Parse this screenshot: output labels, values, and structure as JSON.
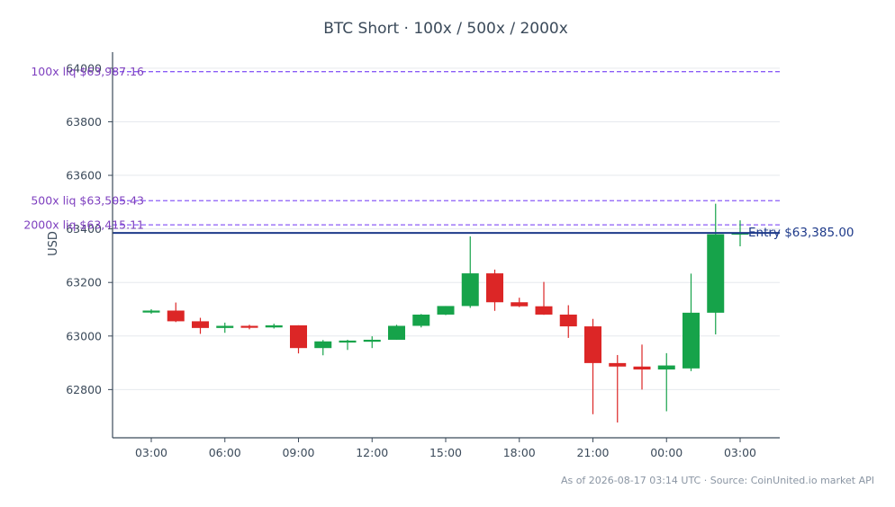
{
  "chart_data": {
    "type": "candlestick",
    "title": "BTC Short · 100x / 500x / 2000x",
    "ylabel": "USD",
    "ylim": [
      62620,
      64060
    ],
    "y_ticks": [
      62800,
      63000,
      63200,
      63400,
      63600,
      63800,
      64000
    ],
    "y_tick_labels": [
      "62800",
      "63000",
      "63200",
      "63400",
      "63600",
      "63800",
      "64000"
    ],
    "x_tick_labels": [
      "03:00",
      "06:00",
      "09:00",
      "12:00",
      "15:00",
      "18:00",
      "21:00",
      "00:00",
      "03:00"
    ],
    "x_tick_index": [
      0,
      3,
      6,
      9,
      12,
      15,
      18,
      21,
      24
    ],
    "grid": true,
    "colors": {
      "up": "#16a34a",
      "down": "#dc2626",
      "entry": "#1e3a8a",
      "liq_line": "#8b5cf6",
      "liq_text": "#7e3fbf"
    },
    "candles": [
      {
        "open": 63093,
        "high": 63100,
        "low": 63083,
        "close": 63095
      },
      {
        "open": 63095,
        "high": 63125,
        "low": 63052,
        "close": 63055
      },
      {
        "open": 63055,
        "high": 63068,
        "low": 63008,
        "close": 63030
      },
      {
        "open": 63030,
        "high": 63050,
        "low": 63012,
        "close": 63038
      },
      {
        "open": 63038,
        "high": 63042,
        "low": 63025,
        "close": 63032
      },
      {
        "open": 63032,
        "high": 63046,
        "low": 63028,
        "close": 63040
      },
      {
        "open": 63040,
        "high": 63040,
        "low": 62935,
        "close": 62955
      },
      {
        "open": 62955,
        "high": 62985,
        "low": 62928,
        "close": 62980
      },
      {
        "open": 62980,
        "high": 62986,
        "low": 62948,
        "close": 62983
      },
      {
        "open": 62983,
        "high": 62999,
        "low": 62955,
        "close": 62986
      },
      {
        "open": 62986,
        "high": 63042,
        "low": 62986,
        "close": 63038
      },
      {
        "open": 63038,
        "high": 63082,
        "low": 63032,
        "close": 63080
      },
      {
        "open": 63080,
        "high": 63112,
        "low": 63078,
        "close": 63112
      },
      {
        "open": 63112,
        "high": 63372,
        "low": 63105,
        "close": 63234
      },
      {
        "open": 63234,
        "high": 63248,
        "low": 63094,
        "close": 63126
      },
      {
        "open": 63126,
        "high": 63143,
        "low": 63108,
        "close": 63111
      },
      {
        "open": 63111,
        "high": 63202,
        "low": 63079,
        "close": 63080
      },
      {
        "open": 63080,
        "high": 63115,
        "low": 62993,
        "close": 63036
      },
      {
        "open": 63036,
        "high": 63064,
        "low": 62708,
        "close": 62899
      },
      {
        "open": 62899,
        "high": 62929,
        "low": 62677,
        "close": 62886
      },
      {
        "open": 62886,
        "high": 62968,
        "low": 62800,
        "close": 62875
      },
      {
        "open": 62875,
        "high": 62936,
        "low": 62719,
        "close": 62890
      },
      {
        "open": 62879,
        "high": 63233,
        "low": 62869,
        "close": 63087
      },
      {
        "open": 63087,
        "high": 63494,
        "low": 63006,
        "close": 63380
      },
      {
        "open": 63382,
        "high": 63432,
        "low": 63335,
        "close": 63386
      }
    ],
    "entry": {
      "label": "Entry $63,385.00",
      "value": 63385
    },
    "liquidation_levels": [
      {
        "label": "100x liq $63,987.16",
        "value": 63987.16
      },
      {
        "label": "500x liq $63,505.43",
        "value": 63505.43
      },
      {
        "label": "2000x liq $63,415.11",
        "value": 63415.11
      }
    ],
    "footer": "As of 2026-08-17 03:14 UTC · Source: CoinUnited.io market API"
  }
}
